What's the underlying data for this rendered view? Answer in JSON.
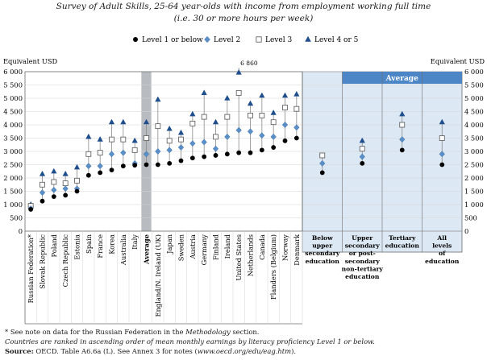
{
  "title": {
    "line1": "Survey of Adult Skills, 25-64 year-olds with income from employment working full time",
    "line2": "(i.e. 30 or more hours per week)"
  },
  "colors": {
    "level1": "#000000",
    "level2": "#5b8fc7",
    "level3": "#ffffff",
    "level4": "#1f4e8c",
    "average_band": "#b8bcc0",
    "average_panel": "#dce8f4",
    "average_header": "#4d86c6",
    "connector": "#8a8a8a"
  },
  "chart_data": {
    "type": "scatter",
    "y_axis_label_left": "Equivalent USD",
    "y_axis_label_right": "Equivalent USD",
    "ylim": [
      0,
      6000
    ],
    "y_ticks": [
      "0",
      "500",
      "1 000",
      "1 500",
      "2 000",
      "2 500",
      "3 000",
      "3 500",
      "4 000",
      "4 500",
      "5 000",
      "5 500",
      "6 000"
    ],
    "legend_placement": "top",
    "series": [
      {
        "name": "Level 1 or below",
        "marker": "circle"
      },
      {
        "name": "Level 2",
        "marker": "diamond"
      },
      {
        "name": "Level 3",
        "marker": "square"
      },
      {
        "name": "Level 4 or 5",
        "marker": "triangle"
      }
    ],
    "countries": [
      {
        "name": "Russian Federation*",
        "l1": 820,
        "l2": 850,
        "l3": 950,
        "l4": 1000
      },
      {
        "name": "Slovak Republic",
        "l1": 1130,
        "l2": 1450,
        "l3": 1750,
        "l4": 2150
      },
      {
        "name": "Poland",
        "l1": 1300,
        "l2": 1550,
        "l3": 1850,
        "l4": 2250
      },
      {
        "name": "Czech Republic",
        "l1": 1350,
        "l2": 1600,
        "l3": 1800,
        "l4": 2150
      },
      {
        "name": "Estonia",
        "l1": 1500,
        "l2": 1600,
        "l3": 1900,
        "l4": 2400
      },
      {
        "name": "Spain",
        "l1": 2100,
        "l2": 2450,
        "l3": 2900,
        "l4": 3550
      },
      {
        "name": "France",
        "l1": 2200,
        "l2": 2450,
        "l3": 2950,
        "l4": 3450
      },
      {
        "name": "Korea",
        "l1": 2300,
        "l2": 2900,
        "l3": 3450,
        "l4": 4100
      },
      {
        "name": "Australia",
        "l1": 2450,
        "l2": 2950,
        "l3": 3450,
        "l4": 4100
      },
      {
        "name": "Italy",
        "l1": 2480,
        "l2": 2550,
        "l3": 3050,
        "l4": 3400
      },
      {
        "name": "Average",
        "l1": 2500,
        "l2": 2900,
        "l3": 3500,
        "l4": 4100,
        "is_average": true
      },
      {
        "name": "England/N. Ireland (UK)",
        "l1": 2500,
        "l2": 3000,
        "l3": 3950,
        "l4": 4950
      },
      {
        "name": "Japan",
        "l1": 2550,
        "l2": 3050,
        "l3": 3400,
        "l4": 3850
      },
      {
        "name": "Sweden",
        "l1": 2650,
        "l2": 3150,
        "l3": 3450,
        "l4": 3700
      },
      {
        "name": "Austria",
        "l1": 2750,
        "l2": 3300,
        "l3": 4050,
        "l4": 4400
      },
      {
        "name": "Germany",
        "l1": 2800,
        "l2": 3350,
        "l3": 4300,
        "l4": 5200
      },
      {
        "name": "Finland",
        "l1": 2850,
        "l2": 3100,
        "l3": 3550,
        "l4": 4100
      },
      {
        "name": "Ireland",
        "l1": 2900,
        "l2": 3550,
        "l3": 4300,
        "l4": 5000
      },
      {
        "name": "United States",
        "l1": 2950,
        "l2": 3800,
        "l3": 5200,
        "l4": 6860,
        "l4_label": "6 860"
      },
      {
        "name": "Netherlands",
        "l1": 2950,
        "l2": 3750,
        "l3": 4350,
        "l4": 4800
      },
      {
        "name": "Canada",
        "l1": 3050,
        "l2": 3600,
        "l3": 4350,
        "l4": 5100
      },
      {
        "name": "Flanders (Belgium)",
        "l1": 3150,
        "l2": 3550,
        "l3": 4100,
        "l4": 4450
      },
      {
        "name": "Norway",
        "l1": 3400,
        "l2": 4000,
        "l3": 4650,
        "l4": 5100
      },
      {
        "name": "Denmark",
        "l1": 3500,
        "l2": 3900,
        "l3": 4600,
        "l4": 5150
      }
    ],
    "average_panel": {
      "header": "Average",
      "groups": [
        {
          "name": "Below upper secondary education",
          "lines": [
            "Below",
            "upper",
            "secondary",
            "education"
          ],
          "l1": 2200,
          "l2": 2550,
          "l3": 2850,
          "l4": null
        },
        {
          "name": "Upper secondary or post-secondary non-tertiary education",
          "lines": [
            "Upper",
            "secondary",
            "or post-",
            "secondary",
            "non-tertiary",
            "education"
          ],
          "l1": 2550,
          "l2": 2800,
          "l3": 3100,
          "l4": 3400
        },
        {
          "name": "Tertiary education",
          "lines": [
            "Tertiary",
            "education"
          ],
          "l1": 3050,
          "l2": 3450,
          "l3": 4000,
          "l4": 4400
        },
        {
          "name": "All levels of education",
          "lines": [
            "All",
            "levels",
            "of",
            "education"
          ],
          "l1": 2500,
          "l2": 2900,
          "l3": 3500,
          "l4": 4100
        }
      ]
    }
  },
  "notes": {
    "note1_pre": "* See note on data for the Russian Federation in the ",
    "note1_italic": "Methodology",
    "note1_post": " section.",
    "note2": "Countries are ranked in ascending order of mean monthly earnings by literacy proficiency Level 1 or below.",
    "source_label": "Source:",
    "source_pre": " OECD. Table A6.6a (L). See Annex 3 for notes (",
    "source_url": "www.oecd.org/edu/eag.htm",
    "source_post": ")."
  }
}
